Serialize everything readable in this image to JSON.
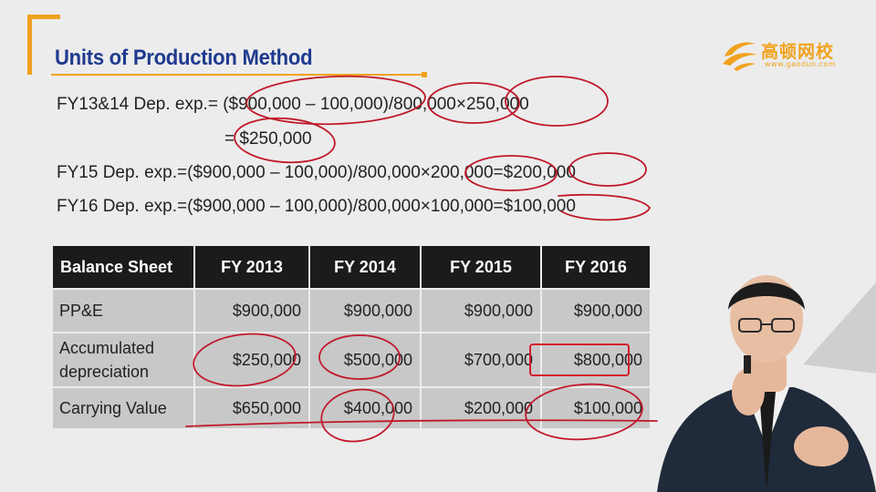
{
  "title": "Units of Production Method",
  "logo": {
    "name_cn": "高顿网校",
    "url": "www.gaodun.com"
  },
  "equations": [
    "FY13&14 Dep. exp.= ($900,000 – 100,000)/800,000×250,000",
    "= $250,000",
    "FY15 Dep. exp.=($900,000 – 100,000)/800,000×200,000=$200,000",
    "FY16 Dep. exp.=($900,000 – 100,000)/800,000×100,000=$100,000"
  ],
  "table": {
    "headers": [
      "Balance Sheet",
      "FY 2013",
      "FY 2014",
      "FY 2015",
      "FY 2016"
    ],
    "rows": [
      [
        "PP&E",
        "$900,000",
        "$900,000",
        "$900,000",
        "$900,000"
      ],
      [
        "Accumulated depreciation",
        "$250,000",
        "$500,000",
        "$700,000",
        "$800,000"
      ],
      [
        "Carrying Value",
        "$650,000",
        "$400,000",
        "$200,000",
        "$100,000"
      ]
    ]
  },
  "colors": {
    "accent": "#f0a21e",
    "title": "#1f3a8f",
    "header_bg": "#1b1b1b",
    "cell_bg": "#c8c8c8",
    "ink": "#c0182a"
  }
}
